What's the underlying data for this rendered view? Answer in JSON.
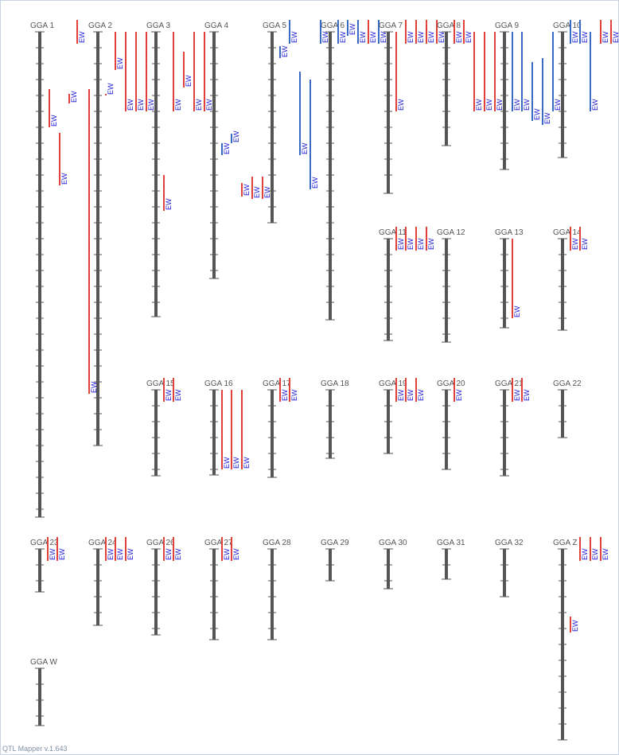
{
  "footer": "QTL Mapper v.1.643",
  "colors": {
    "chromosome": "#555555",
    "qtl_a": "#e0413a",
    "qtl_b": "#3a6bc4",
    "qtl_label": "#1a1ad4",
    "tick": "#555555"
  },
  "qtl_label": "EW",
  "chromosomes": [
    {
      "name": "GGA 1",
      "length": 610,
      "qtls": [
        {
          "o": 12,
          "s": 72,
          "e": 120,
          "c": "a"
        },
        {
          "o": 25,
          "s": 127,
          "e": 193,
          "c": "a"
        },
        {
          "o": 37,
          "s": 78,
          "e": 90,
          "c": "a"
        },
        {
          "o": 62,
          "s": 72,
          "e": 455,
          "c": "a"
        }
      ]
    },
    {
      "name": "GGA 2",
      "length": 520,
      "qtls": [
        {
          "o": -26,
          "s": -15,
          "e": 15,
          "c": "a"
        },
        {
          "o": 10,
          "s": 78,
          "e": 80,
          "c": "a"
        },
        {
          "o": 22,
          "s": 0,
          "e": 48,
          "c": "a"
        },
        {
          "o": 35,
          "s": 0,
          "e": 100,
          "c": "a"
        },
        {
          "o": 48,
          "s": 0,
          "e": 100,
          "c": "a"
        },
        {
          "o": 61,
          "s": 0,
          "e": 100,
          "c": "a"
        }
      ]
    },
    {
      "name": "GGA 3",
      "length": 358,
      "qtls": [
        {
          "o": 10,
          "s": 180,
          "e": 225,
          "c": "a"
        },
        {
          "o": 22,
          "s": 0,
          "e": 100,
          "c": "a"
        },
        {
          "o": 35,
          "s": 25,
          "e": 70,
          "c": "a"
        },
        {
          "o": 48,
          "s": 0,
          "e": 100,
          "c": "a"
        },
        {
          "o": 61,
          "s": 0,
          "e": 100,
          "c": "a"
        }
      ]
    },
    {
      "name": "GGA 4",
      "length": 310,
      "qtls": [
        {
          "o": 10,
          "s": 140,
          "e": 155,
          "c": "b"
        },
        {
          "o": 22,
          "s": 128,
          "e": 140,
          "c": "b"
        }
      ]
    },
    {
      "name": "GGA 5",
      "length": 240,
      "qtls": [
        {
          "o": -38,
          "s": 190,
          "e": 207,
          "c": "a"
        },
        {
          "o": -25,
          "s": 182,
          "e": 210,
          "c": "a"
        },
        {
          "o": -12,
          "s": 182,
          "e": 210,
          "c": "a"
        },
        {
          "o": 10,
          "s": 18,
          "e": 33,
          "c": "b"
        },
        {
          "o": 22,
          "s": -15,
          "e": 15,
          "c": "b"
        },
        {
          "o": 35,
          "s": 50,
          "e": 155,
          "c": "b"
        },
        {
          "o": 48,
          "s": 60,
          "e": 198,
          "c": "b"
        }
      ]
    },
    {
      "name": "GGA 6",
      "length": 362,
      "qtls": [
        {
          "o": -12,
          "s": -15,
          "e": 15,
          "c": "b"
        },
        {
          "o": 10,
          "s": -15,
          "e": 15,
          "c": "b"
        },
        {
          "o": 22,
          "s": -15,
          "e": 5,
          "c": "b"
        },
        {
          "o": 35,
          "s": -15,
          "e": 15,
          "c": "b"
        },
        {
          "o": 48,
          "s": -15,
          "e": 15,
          "c": "a"
        },
        {
          "o": 61,
          "s": -15,
          "e": 15,
          "c": "b"
        }
      ]
    },
    {
      "name": "GGA 7",
      "length": 203,
      "qtls": [
        {
          "o": 10,
          "s": 0,
          "e": 100,
          "c": "a"
        },
        {
          "o": 22,
          "s": -15,
          "e": 15,
          "c": "a"
        },
        {
          "o": 35,
          "s": -15,
          "e": 15,
          "c": "a"
        },
        {
          "o": 48,
          "s": -15,
          "e": 15,
          "c": "a"
        },
        {
          "o": 61,
          "s": -15,
          "e": 15,
          "c": "a"
        }
      ]
    },
    {
      "name": "GGA 8",
      "length": 143,
      "qtls": [
        {
          "o": 10,
          "s": -15,
          "e": 15,
          "c": "a"
        },
        {
          "o": 22,
          "s": -15,
          "e": 15,
          "c": "a"
        },
        {
          "o": 35,
          "s": 0,
          "e": 100,
          "c": "a"
        },
        {
          "o": 48,
          "s": 0,
          "e": 100,
          "c": "a"
        },
        {
          "o": 61,
          "s": 0,
          "e": 100,
          "c": "a"
        }
      ]
    },
    {
      "name": "GGA 9",
      "length": 173,
      "qtls": [
        {
          "o": 10,
          "s": 0,
          "e": 100,
          "c": "b"
        },
        {
          "o": 22,
          "s": 0,
          "e": 100,
          "c": "b"
        },
        {
          "o": 35,
          "s": 38,
          "e": 112,
          "c": "b"
        },
        {
          "o": 48,
          "s": 33,
          "e": 117,
          "c": "b"
        },
        {
          "o": 61,
          "s": 0,
          "e": 100,
          "c": "b"
        }
      ]
    },
    {
      "name": "GGA 10",
      "length": 158,
      "qtls": [
        {
          "o": 10,
          "s": -15,
          "e": 15,
          "c": "b"
        },
        {
          "o": 22,
          "s": -15,
          "e": 15,
          "c": "b"
        },
        {
          "o": 35,
          "s": 0,
          "e": 100,
          "c": "b"
        },
        {
          "o": 48,
          "s": -15,
          "e": 15,
          "c": "a"
        },
        {
          "o": 61,
          "s": -15,
          "e": 15,
          "c": "a"
        }
      ]
    },
    {
      "name": "GGA 11",
      "length": 128,
      "qtls": [
        {
          "o": 10,
          "s": -15,
          "e": 15,
          "c": "a"
        },
        {
          "o": 22,
          "s": -15,
          "e": 15,
          "c": "a"
        },
        {
          "o": 35,
          "s": -15,
          "e": 15,
          "c": "a"
        },
        {
          "o": 48,
          "s": -15,
          "e": 15,
          "c": "a"
        }
      ]
    },
    {
      "name": "GGA 12",
      "length": 130,
      "qtls": []
    },
    {
      "name": "GGA 13",
      "length": 112,
      "qtls": [
        {
          "o": 10,
          "s": 0,
          "e": 100,
          "c": "a"
        }
      ]
    },
    {
      "name": "GGA 14",
      "length": 115,
      "qtls": [
        {
          "o": 10,
          "s": -15,
          "e": 15,
          "c": "a"
        },
        {
          "o": 22,
          "s": -15,
          "e": 15,
          "c": "a"
        }
      ]
    },
    {
      "name": "GGA 15",
      "length": 108,
      "qtls": [
        {
          "o": 10,
          "s": -15,
          "e": 15,
          "c": "a"
        },
        {
          "o": 22,
          "s": -15,
          "e": 15,
          "c": "a"
        }
      ]
    },
    {
      "name": "GGA 16",
      "length": 107,
      "qtls": [
        {
          "o": 10,
          "s": 0,
          "e": 100,
          "c": "a"
        },
        {
          "o": 22,
          "s": 0,
          "e": 100,
          "c": "a"
        },
        {
          "o": 35,
          "s": 0,
          "e": 100,
          "c": "a"
        }
      ]
    },
    {
      "name": "GGA 17",
      "length": 110,
      "qtls": [
        {
          "o": 10,
          "s": -15,
          "e": 15,
          "c": "a"
        },
        {
          "o": 22,
          "s": -15,
          "e": 15,
          "c": "a"
        }
      ]
    },
    {
      "name": "GGA 18",
      "length": 86,
      "qtls": []
    },
    {
      "name": "GGA 19",
      "length": 80,
      "qtls": [
        {
          "o": 10,
          "s": -15,
          "e": 15,
          "c": "a"
        },
        {
          "o": 22,
          "s": -15,
          "e": 15,
          "c": "a"
        },
        {
          "o": 35,
          "s": -15,
          "e": 15,
          "c": "a"
        }
      ]
    },
    {
      "name": "GGA 20",
      "length": 100,
      "qtls": [
        {
          "o": 10,
          "s": -15,
          "e": 15,
          "c": "a"
        }
      ]
    },
    {
      "name": "GGA 21",
      "length": 108,
      "qtls": [
        {
          "o": 10,
          "s": -15,
          "e": 15,
          "c": "a"
        },
        {
          "o": 22,
          "s": -15,
          "e": 15,
          "c": "a"
        }
      ]
    },
    {
      "name": "GGA 22",
      "length": 60,
      "qtls": []
    },
    {
      "name": "GGA 23",
      "length": 54,
      "qtls": [
        {
          "o": 10,
          "s": -15,
          "e": 15,
          "c": "a"
        },
        {
          "o": 22,
          "s": -15,
          "e": 15,
          "c": "a"
        }
      ]
    },
    {
      "name": "GGA 24",
      "length": 96,
      "qtls": [
        {
          "o": 10,
          "s": -15,
          "e": 15,
          "c": "a"
        },
        {
          "o": 22,
          "s": -15,
          "e": 15,
          "c": "a"
        },
        {
          "o": 35,
          "s": -15,
          "e": 15,
          "c": "a"
        }
      ]
    },
    {
      "name": "GGA 26",
      "length": 108,
      "qtls": [
        {
          "o": 10,
          "s": -15,
          "e": 15,
          "c": "a"
        },
        {
          "o": 22,
          "s": -15,
          "e": 15,
          "c": "a"
        }
      ]
    },
    {
      "name": "GGA 27",
      "length": 114,
      "qtls": [
        {
          "o": 10,
          "s": -15,
          "e": 15,
          "c": "a"
        },
        {
          "o": 22,
          "s": -15,
          "e": 15,
          "c": "a"
        }
      ]
    },
    {
      "name": "GGA 28",
      "length": 114,
      "qtls": []
    },
    {
      "name": "GGA 29",
      "length": 40,
      "qtls": []
    },
    {
      "name": "GGA 30",
      "length": 50,
      "qtls": []
    },
    {
      "name": "GGA 31",
      "length": 38,
      "qtls": []
    },
    {
      "name": "GGA 32",
      "length": 60,
      "qtls": []
    },
    {
      "name": "GGA Z",
      "length": 240,
      "qtls": [
        {
          "o": 10,
          "s": 85,
          "e": 105,
          "c": "a"
        },
        {
          "o": 22,
          "s": -15,
          "e": 15,
          "c": "a"
        },
        {
          "o": 35,
          "s": -15,
          "e": 15,
          "c": "a"
        },
        {
          "o": 48,
          "s": -15,
          "e": 15,
          "c": "a"
        }
      ]
    },
    {
      "name": "GGA W",
      "length": 72,
      "qtls": []
    }
  ]
}
